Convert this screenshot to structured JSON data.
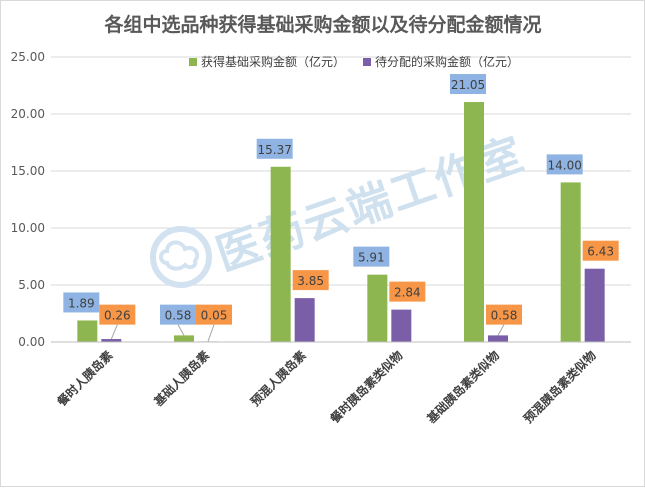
{
  "chart_data": {
    "type": "bar",
    "title": "各组中选品种获得基础采购金额以及待分配金额情况",
    "categories": [
      "餐时人胰岛素",
      "基础人胰岛素",
      "预混人胰岛素",
      "餐时胰岛素类似物",
      "基础胰岛素类似物",
      "预混胰岛素类似物"
    ],
    "series": [
      {
        "name": "获得基础采购金额（亿元）",
        "values": [
          1.89,
          0.58,
          15.37,
          5.91,
          21.05,
          14.0
        ],
        "labels": [
          "1.89",
          "0.58",
          "15.37",
          "5.91",
          "21.05",
          "14.00"
        ],
        "color": "#8db650",
        "label_bg": "#8fb4e3"
      },
      {
        "name": "待分配的采购金额（亿元）",
        "values": [
          0.26,
          0.05,
          3.85,
          2.84,
          0.58,
          6.43
        ],
        "labels": [
          "0.26",
          "0.05",
          "3.85",
          "2.84",
          "0.58",
          "6.43"
        ],
        "color": "#7a5fa8",
        "label_bg": "#f79646"
      }
    ],
    "yticks": [
      "0.00",
      "5.00",
      "10.00",
      "15.00",
      "20.00",
      "25.00"
    ],
    "ylim": [
      0,
      25
    ],
    "xlabel": "",
    "ylabel": "",
    "grid": true,
    "legend": "top-center"
  },
  "watermark": {
    "text": "医药云端工作室",
    "icon": "cloud-logo-icon"
  }
}
